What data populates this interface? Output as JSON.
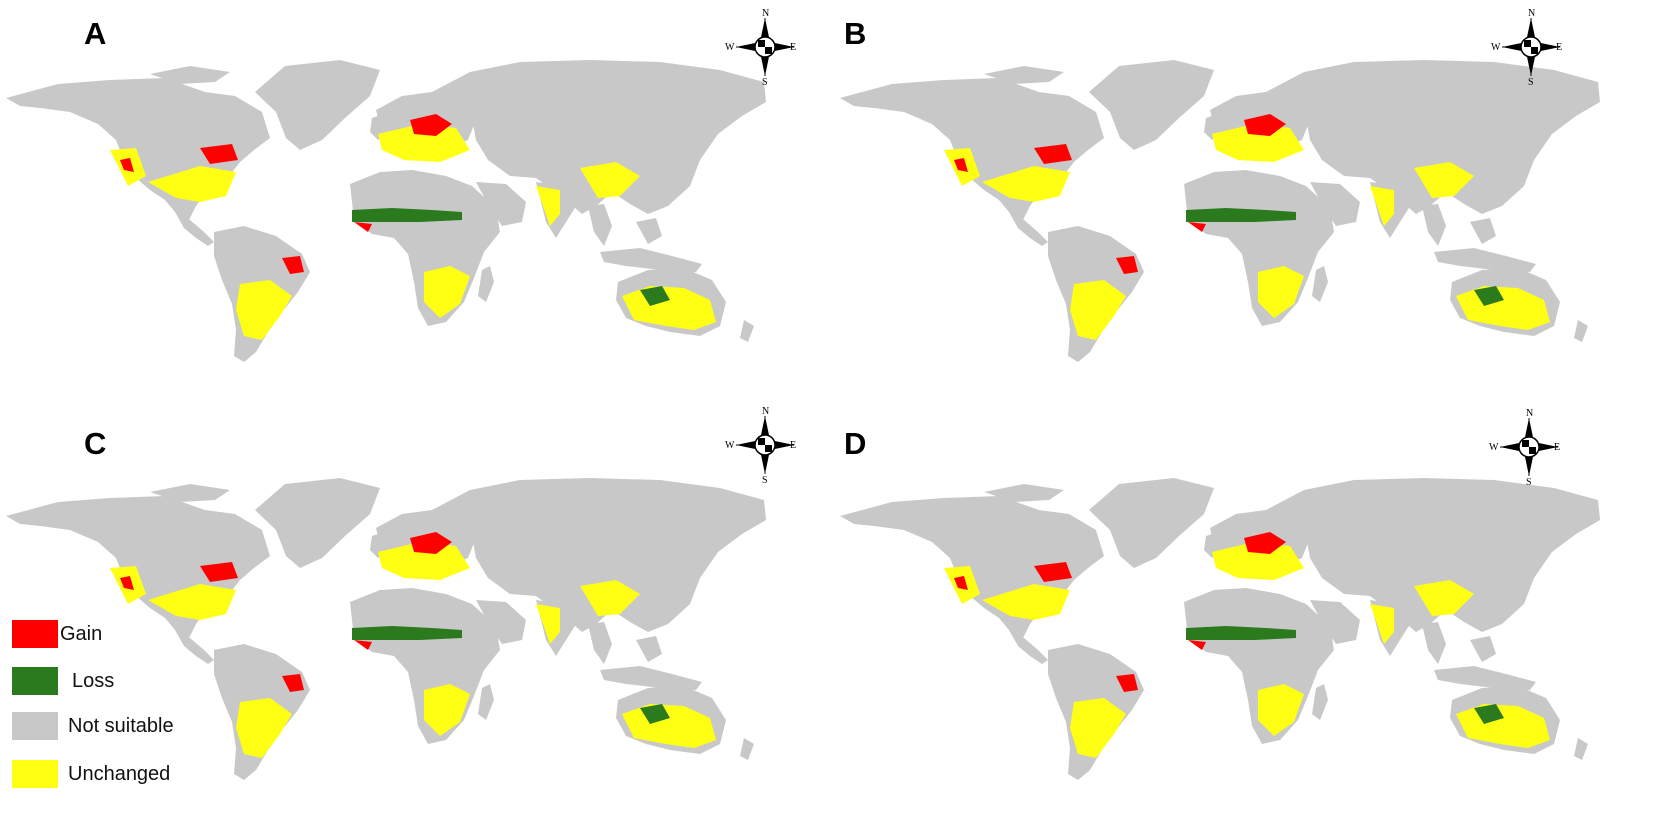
{
  "figure": {
    "panels": [
      {
        "letter": "A"
      },
      {
        "letter": "B"
      },
      {
        "letter": "C"
      },
      {
        "letter": "D"
      }
    ],
    "compass": {
      "north": "N",
      "south": "S",
      "east": "E",
      "west": "W"
    },
    "legend": {
      "items": [
        {
          "label": "Gain",
          "color": "#ff0000"
        },
        {
          "label": "Loss",
          "color": "#2c7a1e"
        },
        {
          "label": "Not suitable",
          "color": "#c8c8c8"
        },
        {
          "label": "Unchanged",
          "color": "#ffff14"
        }
      ]
    },
    "colors": {
      "land": "#c8c8c8",
      "gain": "#ff0000",
      "loss": "#2c7a1e",
      "unchanged": "#ffff14",
      "background": "#ffffff"
    }
  }
}
